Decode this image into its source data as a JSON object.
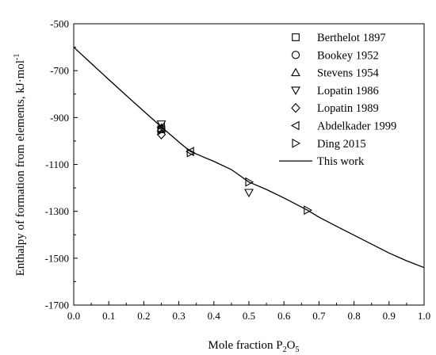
{
  "chart_data": {
    "type": "scatter",
    "xlabel": {
      "main": "Mole fraction P",
      "sub1": "2",
      "mid": "O",
      "sub2": "5"
    },
    "ylabel": {
      "main": "Enthalpy of formation from elements, kJ·mol",
      "sup": "-1"
    },
    "xlim": [
      0.0,
      1.0
    ],
    "ylim": [
      -1700,
      -500
    ],
    "xticks": [
      {
        "value": 0.0,
        "label": "0.0"
      },
      {
        "value": 0.1,
        "label": "0.1"
      },
      {
        "value": 0.2,
        "label": "0.2"
      },
      {
        "value": 0.3,
        "label": "0.3"
      },
      {
        "value": 0.4,
        "label": "0.4"
      },
      {
        "value": 0.5,
        "label": "0.5"
      },
      {
        "value": 0.6,
        "label": "0.6"
      },
      {
        "value": 0.7,
        "label": "0.7"
      },
      {
        "value": 0.8,
        "label": "0.8"
      },
      {
        "value": 0.9,
        "label": "0.9"
      },
      {
        "value": 1.0,
        "label": "1.0"
      }
    ],
    "yticks": [
      {
        "value": -500,
        "label": "-500"
      },
      {
        "value": -700,
        "label": "-700"
      },
      {
        "value": -900,
        "label": "-900"
      },
      {
        "value": -1100,
        "label": "-1100"
      },
      {
        "value": -1300,
        "label": "-1300"
      },
      {
        "value": -1500,
        "label": "-1500"
      },
      {
        "value": -1700,
        "label": "-1700"
      }
    ],
    "legend_position": "top-right",
    "series": [
      {
        "name": "Berthelot 1897",
        "marker": "square",
        "points": [
          [
            0.25,
            -950
          ]
        ]
      },
      {
        "name": "Bookey 1952",
        "marker": "circle",
        "points": [
          [
            0.25,
            -948
          ]
        ]
      },
      {
        "name": "Stevens 1954",
        "marker": "triangle-up",
        "points": [
          [
            0.25,
            -945
          ]
        ]
      },
      {
        "name": "Lopatin 1986",
        "marker": "triangle-down",
        "points": [
          [
            0.25,
            -928
          ],
          [
            0.5,
            -1220
          ]
        ]
      },
      {
        "name": "Lopatin 1989",
        "marker": "diamond",
        "points": [
          [
            0.25,
            -972
          ]
        ]
      },
      {
        "name": "Abdelkader 1999",
        "marker": "triangle-left",
        "points": [
          [
            0.25,
            -942
          ],
          [
            0.333,
            -1045
          ]
        ]
      },
      {
        "name": "Ding 2015",
        "marker": "triangle-right",
        "points": [
          [
            0.25,
            -955
          ],
          [
            0.333,
            -1050
          ],
          [
            0.5,
            -1175
          ],
          [
            0.667,
            -1295
          ]
        ]
      },
      {
        "name": "This work",
        "marker": "line",
        "line": [
          [
            0.0,
            -600
          ],
          [
            0.05,
            -669
          ],
          [
            0.1,
            -738
          ],
          [
            0.15,
            -806
          ],
          [
            0.2,
            -873
          ],
          [
            0.25,
            -940
          ],
          [
            0.3,
            -1004
          ],
          [
            0.333,
            -1045
          ],
          [
            0.4,
            -1087
          ],
          [
            0.45,
            -1122
          ],
          [
            0.5,
            -1175
          ],
          [
            0.55,
            -1207
          ],
          [
            0.6,
            -1243
          ],
          [
            0.667,
            -1295
          ],
          [
            0.7,
            -1325
          ],
          [
            0.75,
            -1364
          ],
          [
            0.8,
            -1402
          ],
          [
            0.85,
            -1440
          ],
          [
            0.9,
            -1478
          ],
          [
            0.95,
            -1511
          ],
          [
            1.0,
            -1540
          ]
        ]
      }
    ]
  }
}
